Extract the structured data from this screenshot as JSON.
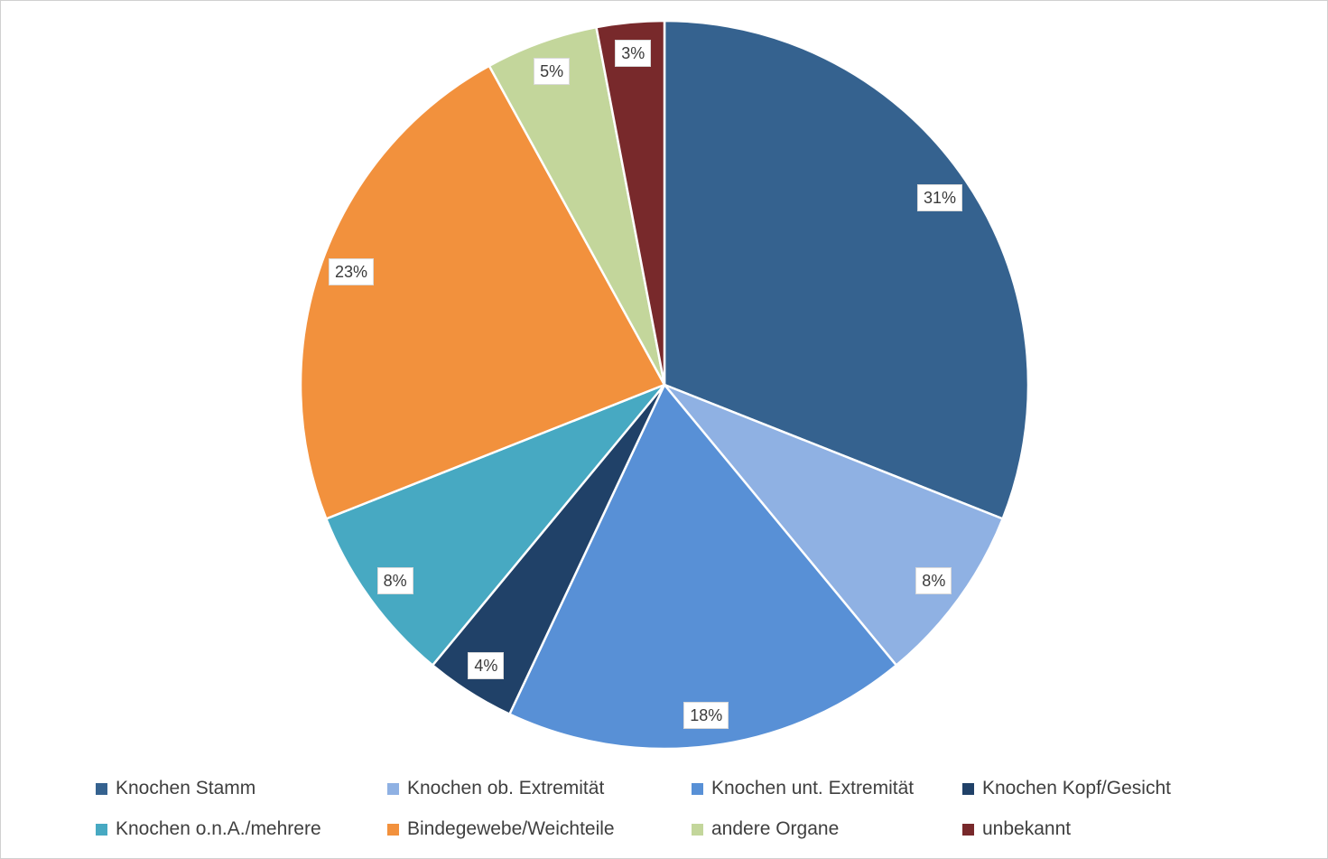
{
  "chart_data": {
    "type": "pie",
    "title": "",
    "unit": "percent",
    "start_angle_deg": 0,
    "direction": "clockwise",
    "grid": false,
    "legend_position": "bottom",
    "legend_rows": 2,
    "legend_columns": 4,
    "series": [
      {
        "label": "Knochen Stamm",
        "value": 31,
        "data_label": "31%",
        "color": "#35628F"
      },
      {
        "label": "Knochen ob. Extremität",
        "value": 8,
        "data_label": "8%",
        "color": "#8FB1E3"
      },
      {
        "label": "Knochen unt. Extremität",
        "value": 18,
        "data_label": "18%",
        "color": "#5890D6"
      },
      {
        "label": "Knochen Kopf/Gesicht",
        "value": 4,
        "data_label": "4%",
        "color": "#204168"
      },
      {
        "label": "Knochen o.n.A./mehrere",
        "value": 8,
        "data_label": "8%",
        "color": "#47A9C2"
      },
      {
        "label": "Bindegewebe/Weichteile",
        "value": 23,
        "data_label": "23%",
        "color": "#F2913D"
      },
      {
        "label": "andere Organe",
        "value": 5,
        "data_label": "5%",
        "color": "#C3D69B"
      },
      {
        "label": "unbekannt",
        "value": 3,
        "data_label": "3%",
        "color": "#78292B"
      }
    ]
  },
  "colors": {
    "slice_border": "#FFFFFF",
    "label_box_bg": "#FFFFFF",
    "label_box_border": "#D9D9D9",
    "legend_text": "#3F3F3F",
    "frame_border": "#D0D0D0"
  }
}
